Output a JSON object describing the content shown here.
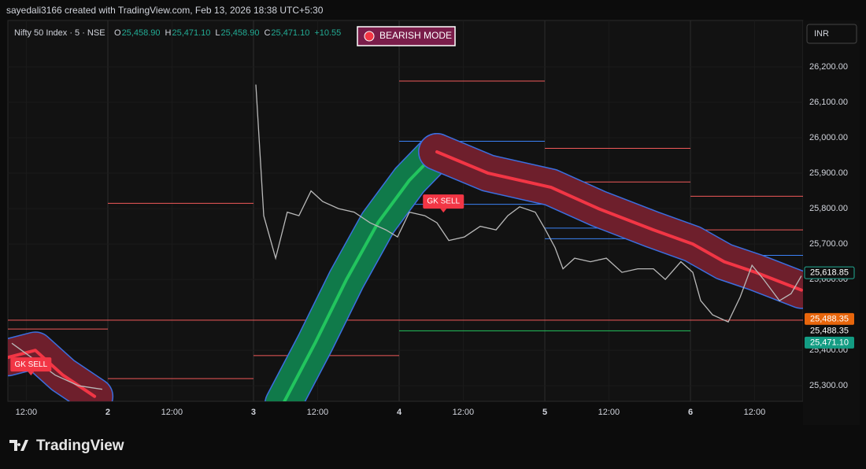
{
  "header": {
    "credit": "sayedali3166 created with TradingView.com, Feb 13, 2026 18:38 UTC+5:30",
    "symbol": "Nifty 50 Index · 5 · NSE",
    "ohlc": [
      {
        "key": "O",
        "text": "25,458.90"
      },
      {
        "key": "H",
        "text": "25,471.10"
      },
      {
        "key": "L",
        "text": "25,458.90"
      },
      {
        "key": "C",
        "text": "25,471.10"
      }
    ],
    "change": "+10.55",
    "currency": "INR",
    "brand": "TradingView"
  },
  "chart_data": {
    "type": "line",
    "mode_label": "BEARISH MODE",
    "signals": [
      {
        "label": "GK SELL",
        "x": 14.4,
        "y": 25820
      },
      {
        "label": "GK SELL",
        "x": -3.3,
        "y": 25360
      }
    ],
    "xlim": [
      -4.29,
      29.83
    ],
    "ylim": [
      25256,
      26331
    ],
    "xticks": [
      {
        "value": -3.5,
        "label": "12:00"
      },
      {
        "value": 0,
        "label": "2"
      },
      {
        "value": 2.75,
        "label": "12:00"
      },
      {
        "value": 6.25,
        "label": "3"
      },
      {
        "value": 9,
        "label": "12:00"
      },
      {
        "value": 12.5,
        "label": "4"
      },
      {
        "value": 15.25,
        "label": "12:00"
      },
      {
        "value": 18.75,
        "label": "5"
      },
      {
        "value": 21.5,
        "label": "12:00"
      },
      {
        "value": 25,
        "label": "6"
      },
      {
        "value": 27.75,
        "label": "12:00"
      }
    ],
    "yticks": [
      {
        "value": 26200,
        "label": "26,200.00"
      },
      {
        "value": 26100,
        "label": "26,100.00"
      },
      {
        "value": 26000,
        "label": "26,000.00"
      },
      {
        "value": 25900,
        "label": "25,900.00"
      },
      {
        "value": 25800,
        "label": "25,800.00"
      },
      {
        "value": 25700,
        "label": "25,700.00"
      },
      {
        "value": 25600,
        "label": "25,600.00"
      },
      {
        "value": 25400,
        "label": "25,400.00"
      },
      {
        "value": 25300,
        "label": "25,300.00"
      }
    ],
    "price": {
      "color": "#b9b9b9",
      "x": [
        -4.12,
        -3.28,
        -2.26,
        -1.25,
        -0.24,
        null,
        6.35,
        6.69,
        7.2,
        7.7,
        8.2,
        8.72,
        9.22,
        9.9,
        10.57,
        11.25,
        11.93,
        12.43,
        12.94,
        13.6,
        14.12,
        14.63,
        15.3,
        15.98,
        16.66,
        17.16,
        17.67,
        18.34,
        18.78,
        19.19,
        19.53,
        20.03,
        20.71,
        21.39,
        22.06,
        22.74,
        23.41,
        23.92,
        24.59,
        25.1,
        25.44,
        25.95,
        26.62,
        27.13,
        27.64,
        28.14,
        28.82,
        29.32,
        29.76
      ],
      "values": [
        25420,
        25380,
        25330,
        25300,
        25290,
        null,
        26150,
        25780,
        25660,
        25790,
        25780,
        25850,
        25820,
        25800,
        25790,
        25760,
        25740,
        25720,
        25790,
        25780,
        25760,
        25710,
        25720,
        25750,
        25740,
        25780,
        25805,
        25790,
        25740,
        25690,
        25630,
        25660,
        25650,
        25660,
        25620,
        25630,
        25630,
        25600,
        25650,
        25620,
        25540,
        25500,
        25480,
        25550,
        25640,
        25600,
        25540,
        25560,
        25610
      ]
    },
    "bands": [
      {
        "color": "#f23645",
        "x": [
          -4.29,
          -3.11,
          -1.93,
          -0.57
        ],
        "values": [
          25380,
          25400,
          25330,
          25270
        ]
      },
      {
        "color": "#22c55e",
        "x": [
          7.53,
          8.89,
          10.24,
          11.59,
          12.94,
          14.12
        ],
        "values": [
          25250,
          25420,
          25600,
          25760,
          25880,
          25960
        ]
      },
      {
        "color": "#f23645",
        "x": [
          14.12,
          16.32,
          19.02,
          21.05,
          23.41,
          25.1,
          26.45,
          27.8,
          29.76
        ],
        "values": [
          25960,
          25900,
          25860,
          25800,
          25740,
          25700,
          25650,
          25620,
          25570
        ]
      }
    ],
    "levels": [
      {
        "value": 26160,
        "x": [
          12.5,
          18.75
        ],
        "color": "#f05a5a"
      },
      {
        "value": 25990,
        "x": [
          12.5,
          18.75
        ],
        "color": "#3b82f6"
      },
      {
        "value": 25970,
        "x": [
          18.75,
          25
        ],
        "color": "#f05a5a"
      },
      {
        "value": 25875,
        "x": [
          18.75,
          25
        ],
        "color": "#f05a5a"
      },
      {
        "value": 25835,
        "x": [
          25,
          29.83
        ],
        "color": "#f05a5a"
      },
      {
        "value": 25740,
        "x": [
          25,
          29.83
        ],
        "color": "#f05a5a"
      },
      {
        "value": 25815,
        "x": [
          0,
          6.25
        ],
        "color": "#f05a5a"
      },
      {
        "value": 25460,
        "x": [
          -4.29,
          0
        ],
        "color": "#f05a5a"
      },
      {
        "value": 25385,
        "x": [
          6.25,
          12.5
        ],
        "color": "#f05a5a"
      },
      {
        "value": 25320,
        "x": [
          0,
          6.25
        ],
        "color": "#f05a5a"
      },
      {
        "value": 25485,
        "x": [
          -4.29,
          29.83
        ],
        "color": "#f05a5a"
      },
      {
        "value": 25455,
        "x": [
          12.5,
          25
        ],
        "color": "#22c55e"
      },
      {
        "value": 25900,
        "x": [
          12.5,
          18.75
        ],
        "color": "#3b82f6"
      },
      {
        "value": 25812,
        "x": [
          12.5,
          18.75
        ],
        "color": "#3b82f6"
      },
      {
        "value": 25745,
        "x": [
          18.75,
          25
        ],
        "color": "#3b82f6"
      },
      {
        "value": 25715,
        "x": [
          18.75,
          25
        ],
        "color": "#3b82f6"
      },
      {
        "value": 25668,
        "x": [
          25,
          29.83
        ],
        "color": "#3b82f6"
      }
    ],
    "price_tags": [
      {
        "value": 25618.85,
        "label": "25,618.85",
        "color": "#0f0f0f"
      },
      {
        "value": 25488.35,
        "label": "25,488.35",
        "color": "#e8660c"
      },
      {
        "value": 25488.35,
        "label": "25,488.35",
        "color": "#0f0f0f"
      },
      {
        "value": 25471.1,
        "label": "25,471.10",
        "color": "#139c83"
      }
    ]
  }
}
